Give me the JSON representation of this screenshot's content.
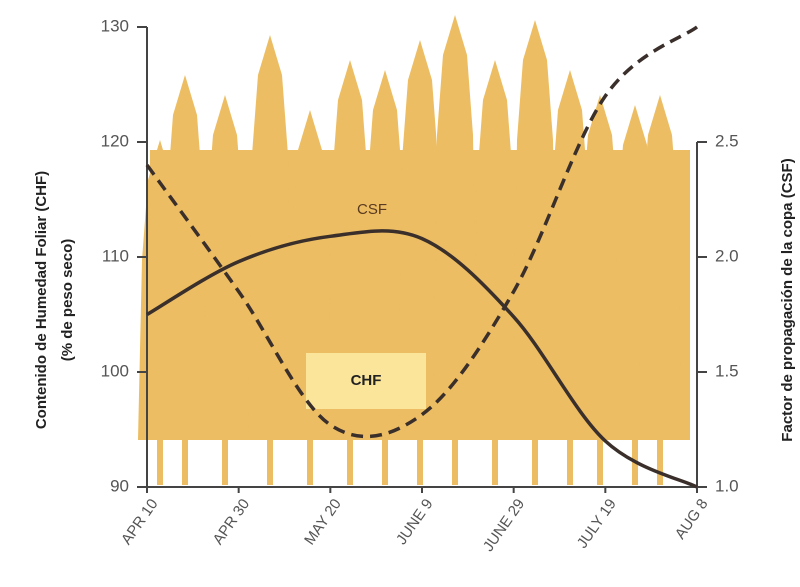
{
  "chart_data": {
    "type": "line",
    "y_label": "Contenido de Humedad Foliar (CHF)",
    "y_sublabel": "(% de peso seco)",
    "y2_label": "Factor de propagación de la copa (CSF)",
    "categories": [
      "APR 10",
      "APR 30",
      "MAY 20",
      "JUNE 9",
      "JUNE 29",
      "JULY 19",
      "AUG 8"
    ],
    "series": [
      {
        "name": "CHF",
        "color": "#3a2f2a",
        "style": "dashed",
        "values": [
          118,
          107,
          95.4,
          96.3,
          107,
          124,
          130
        ]
      },
      {
        "name": "CSF",
        "color": "#3a2f2a",
        "style": "solid",
        "axis": "y2",
        "values": [
          1.75,
          1.98,
          2.09,
          2.08,
          1.74,
          1.2,
          1.0
        ]
      }
    ],
    "ylim": [
      90,
      130
    ],
    "yticks": [
      90,
      100,
      110,
      120,
      130
    ],
    "y2lim": [
      1,
      3
    ],
    "y2ticks": [
      {
        "value": 1,
        "label": "1.0"
      },
      1.5,
      {
        "value": 2,
        "label": "2.0"
      },
      2.5
    ],
    "grid": false
  }
}
